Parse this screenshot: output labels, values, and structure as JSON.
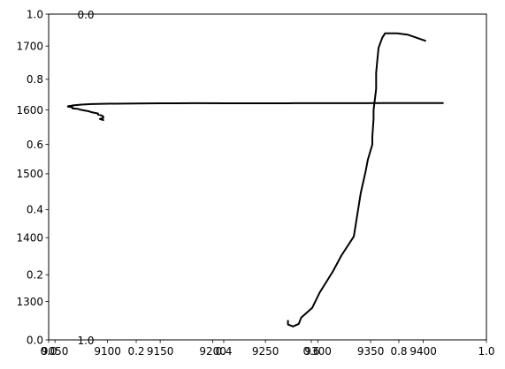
{
  "chart_data": [
    {
      "type": "line",
      "title": "",
      "xlabel": "",
      "ylabel": "",
      "xlim": [
        0,
        1
      ],
      "ylim": [
        0,
        1
      ],
      "x_ticks": [
        {
          "value": 0.0,
          "label": "0.0"
        },
        {
          "value": 0.2,
          "label": "0.2"
        },
        {
          "value": 0.4,
          "label": "0.4"
        },
        {
          "value": 0.6,
          "label": "0.6"
        },
        {
          "value": 0.8,
          "label": "0.8"
        },
        {
          "value": 1.0,
          "label": "1.0"
        }
      ],
      "y_ticks": [
        {
          "value": 0.0,
          "label": "0.0"
        },
        {
          "value": 0.2,
          "label": "0.2"
        },
        {
          "value": 0.4,
          "label": "0.4"
        },
        {
          "value": 0.6,
          "label": "0.6"
        },
        {
          "value": 0.8,
          "label": "0.8"
        },
        {
          "value": 1.0,
          "label": "1.0"
        }
      ],
      "series": []
    },
    {
      "type": "line",
      "title": "",
      "xlabel": "",
      "ylabel": "",
      "xlim": [
        9044,
        9460
      ],
      "ylim": [
        1240,
        1750
      ],
      "x_ticks": [
        {
          "value": 9050,
          "label": "9050"
        },
        {
          "value": 9100,
          "label": "9100"
        },
        {
          "value": 9150,
          "label": "9150"
        },
        {
          "value": 9200,
          "label": "9200"
        },
        {
          "value": 9250,
          "label": "9250"
        },
        {
          "value": 9300,
          "label": "9300"
        },
        {
          "value": 9350,
          "label": "9350"
        },
        {
          "value": 9400,
          "label": "9400"
        }
      ],
      "y_ticks": [
        {
          "value": 1300,
          "label": "1300"
        },
        {
          "value": 1400,
          "label": "1400"
        },
        {
          "value": 1500,
          "label": "1500"
        },
        {
          "value": 1600,
          "label": "1600"
        },
        {
          "value": 1700,
          "label": "1700"
        }
      ],
      "series": [
        {
          "x": [
            9419.3,
            9383.9,
            9363.3,
            9343.8,
            9330.7,
            9317.9,
            9309.2,
            9299.7,
            9288.1,
            9281.4,
            9276.9,
            9273.1,
            9254.6,
            9211.8,
            9183.7,
            9167.0,
            9150.2,
            9125.7,
            9100.0,
            9084.9,
            9075.2,
            9066.3,
            9066.3,
            9062.6,
            9062.3,
            9066.6,
            9066.6,
            9072.0,
            9074.7,
            9081.9,
            9084.8,
            9091.0,
            9091.0,
            9094.5,
            9095.9,
            9095.9,
            9092.7,
            9095.9,
            9095.9
          ],
          "y": [
            1610.7,
            1610.7,
            1610.8,
            1610.6,
            1610.6,
            1610.6,
            1610.6,
            1610.6,
            1610.6,
            1610.6,
            1610.6,
            1610.4,
            1610.4,
            1610.4,
            1610.5,
            1610.4,
            1610.4,
            1610.1,
            1609.7,
            1609.1,
            1608.3,
            1607.0,
            1606.6,
            1605.9,
            1605.3,
            1604.2,
            1602.4,
            1601.5,
            1600.2,
            1598.0,
            1596.4,
            1594.4,
            1592.7,
            1591.4,
            1589.6,
            1587.6,
            1585.8,
            1584.2,
            1583.2
          ]
        },
        {
          "x": [
            9271.4,
            9271.4,
            9276.2,
            9281.7,
            9284.0,
            9294.4,
            9301.5,
            9314.0,
            9322.2,
            9334.0,
            9340.6,
            9345.1,
            9347.3,
            9351.6,
            9351.6,
            9352.8,
            9352.8,
            9355.2,
            9355.2,
            9356.0,
            9357.5,
            9361.0,
            9363.7,
            9375.0,
            9385.0,
            9402.5
          ],
          "y": [
            1271,
            1264,
            1261,
            1265,
            1275,
            1290,
            1314,
            1347,
            1372,
            1402,
            1470,
            1503,
            1522,
            1546,
            1558,
            1586,
            1600,
            1633,
            1658,
            1673,
            1697,
            1713,
            1720,
            1720,
            1718,
            1708
          ]
        }
      ]
    }
  ]
}
